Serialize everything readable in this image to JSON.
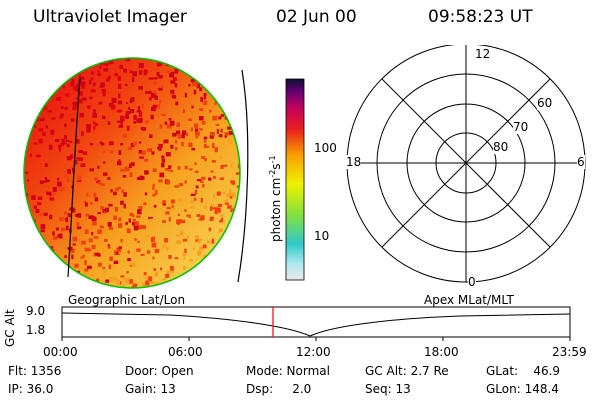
{
  "header": {
    "instrument": "Ultraviolet Imager",
    "date": "02 Jun 00",
    "time": "09:58:23 UT"
  },
  "colorbar": {
    "label_main": "photon cm",
    "label_exp1": "-2",
    "label_mid": "s",
    "label_exp2": "-1",
    "ticks": [
      "100",
      "10"
    ]
  },
  "polar_grid": {
    "mlt_labels": [
      "12",
      "18",
      "6",
      "0"
    ],
    "lat_labels": [
      "60",
      "70",
      "80"
    ]
  },
  "altitude_plot": {
    "left_title": "Geographic Lat/Lon",
    "right_title": "Apex MLat/MLT",
    "ylabel": "GC Alt",
    "yticks": [
      "9.0",
      "1.8"
    ],
    "xticks": [
      "00:00",
      "06:00",
      "12:00",
      "18:00",
      "23:59"
    ],
    "marker_color": "#ff0000"
  },
  "info": {
    "col1": [
      "Flt: 1356",
      "IP: 36.0"
    ],
    "col2": [
      "Door: Open",
      "Gain: 13"
    ],
    "col3": [
      "Mode: Normal",
      "Dsp:     2.0"
    ],
    "col4": [
      "GC Alt: 2.7 Re",
      "Seq: 13"
    ],
    "col5": [
      "GLat:    46.9",
      "GLon: 148.4"
    ]
  },
  "colors": {
    "image_rim": "#00c000",
    "polar_grid": "#000000"
  }
}
